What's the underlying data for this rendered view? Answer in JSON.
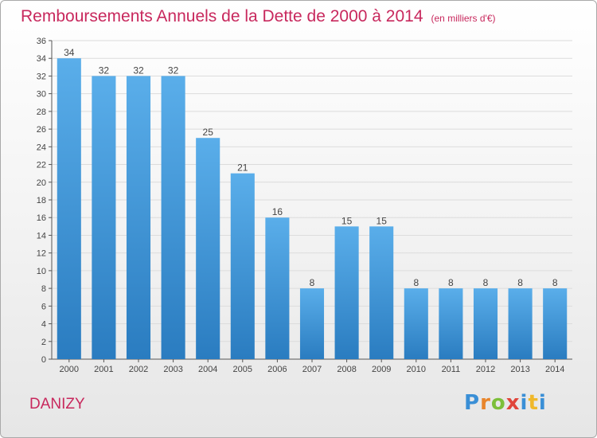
{
  "title": "Remboursements Annuels de la Dette de 2000 à 2014",
  "subtitle": "(en milliers d'€)",
  "commune": "DANIZY",
  "logo": "Proxiti",
  "colors": {
    "title": "#c8285d",
    "bar_light": "#5aaeea",
    "bar_dark": "#2a7cc0",
    "grid": "#dcdcdc"
  },
  "chart_data": {
    "type": "bar",
    "title": "Remboursements Annuels de la Dette de 2000 à 2014",
    "subtitle": "(en milliers d'€)",
    "categories": [
      "2000",
      "2001",
      "2002",
      "2003",
      "2004",
      "2005",
      "2006",
      "2007",
      "2008",
      "2009",
      "2010",
      "2011",
      "2012",
      "2013",
      "2014"
    ],
    "values": [
      34,
      32,
      32,
      32,
      25,
      21,
      16,
      8,
      15,
      15,
      8,
      8,
      8,
      8,
      8
    ],
    "xlabel": "",
    "ylabel": "",
    "ylim": [
      0,
      36
    ],
    "yticks": [
      0,
      2,
      4,
      6,
      8,
      10,
      12,
      14,
      16,
      18,
      20,
      22,
      24,
      26,
      28,
      30,
      32,
      34,
      36
    ],
    "grid": true,
    "legend": "none",
    "data_labels": true
  }
}
